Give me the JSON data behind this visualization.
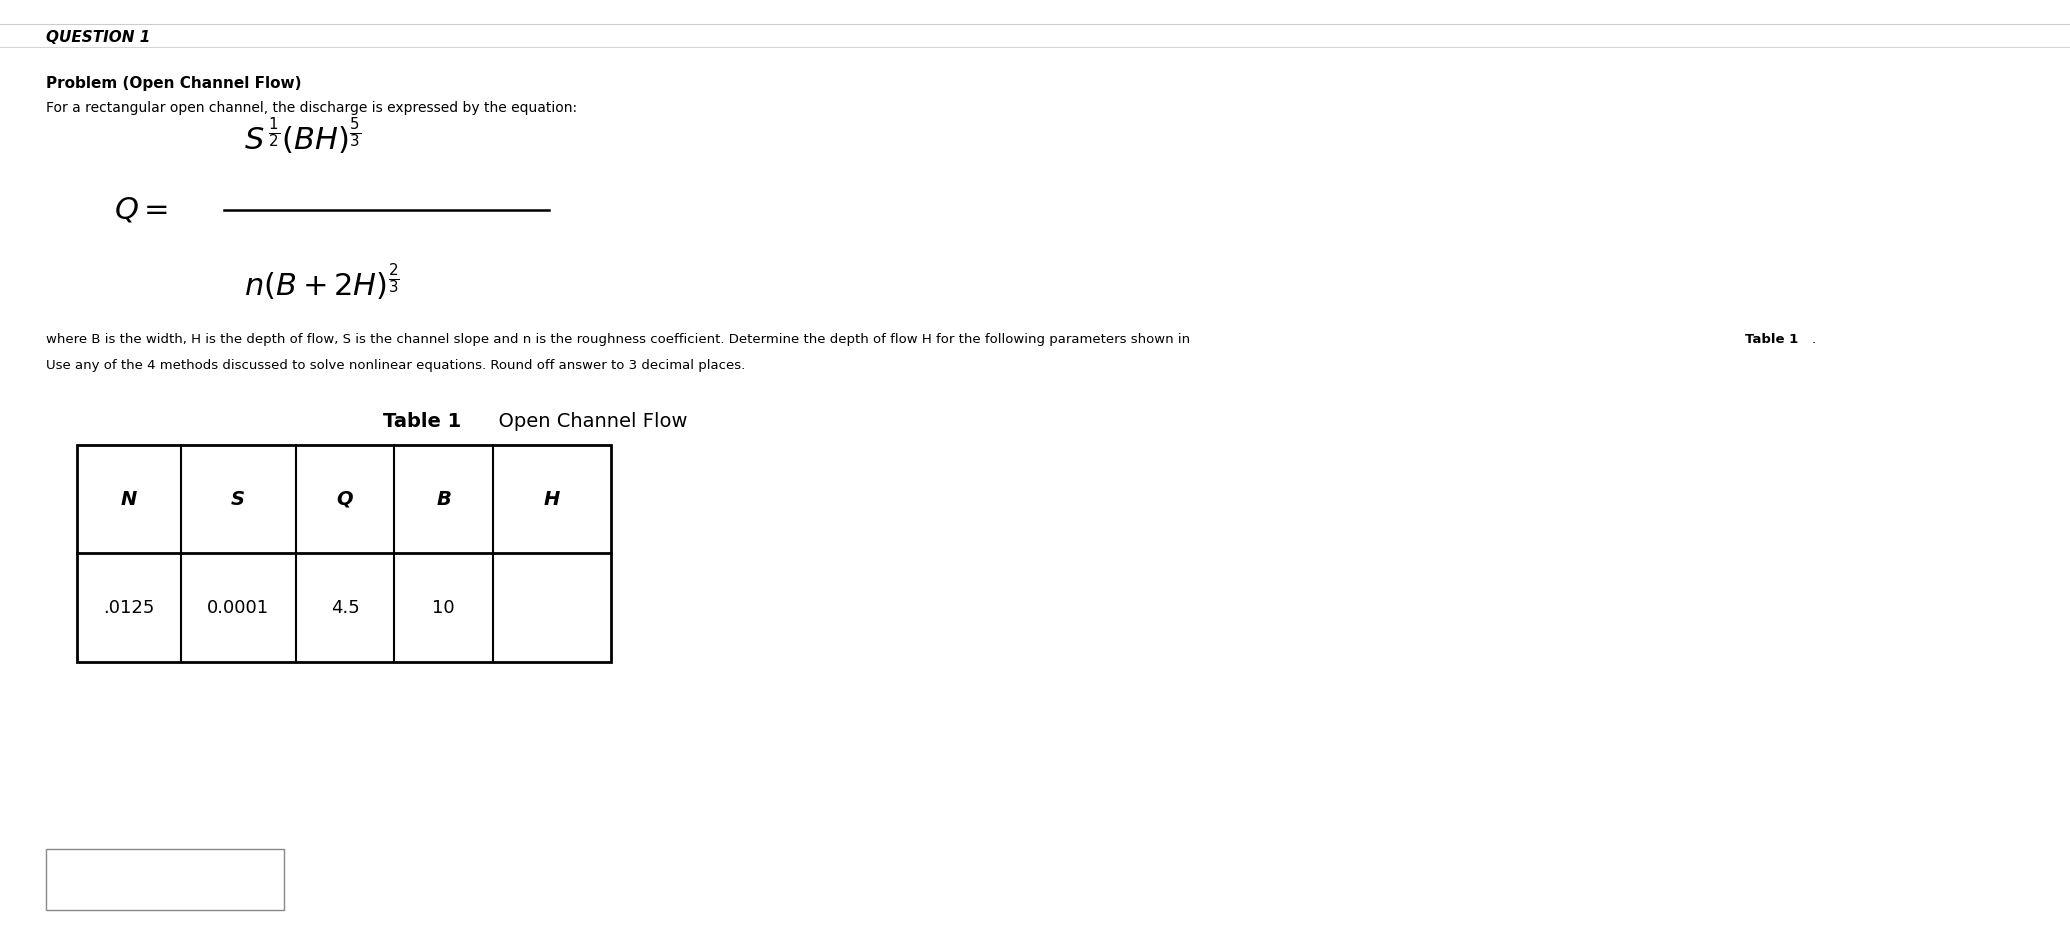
{
  "background_color": "#ffffff",
  "question_label": "QUESTION 1",
  "problem_title": "Problem (Open Channel Flow)",
  "intro_text": "For a rectangular open channel, the discharge is expressed by the equation:",
  "where_text1": "where B is the width, H is the depth of flow, S is the channel slope and n is the roughness coefficient. Determine the depth of flow H for the following parameters shown in ",
  "where_bold": "Table 1",
  "where_end": ".",
  "instruction_text": "Use any of the 4 methods discussed to solve nonlinear equations. Round off answer to 3 decimal places.",
  "table_title_bold": "Table 1",
  "table_title_normal": "  Open Channel Flow",
  "table_headers": [
    "N",
    "S",
    "Q",
    "B",
    "H"
  ],
  "table_data": [
    ".0125",
    "0.0001",
    "4.5",
    "10",
    ""
  ],
  "text_color": "#000000",
  "line_color": "#000000",
  "bg_color": "#ffffff"
}
